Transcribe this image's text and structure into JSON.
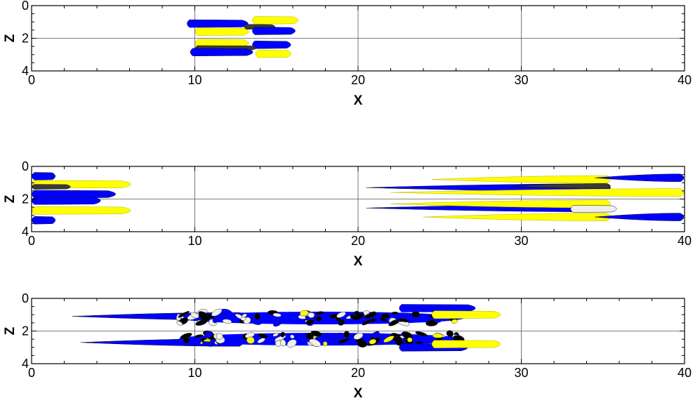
{
  "chart_data": [
    {
      "type": "contour",
      "panel": "top",
      "xlabel": "X",
      "ylabel": "Z",
      "xlim": [
        0,
        40
      ],
      "ylim": [
        4,
        0
      ],
      "xticks": [
        "0",
        "10",
        "20",
        "30",
        "40"
      ],
      "yticks": [
        "0",
        "2",
        "4"
      ],
      "grid": true,
      "structures": [
        {
          "color": "blue",
          "x": [
            9.5,
            13.5
          ],
          "z": 1.1
        },
        {
          "color": "yellow",
          "x": [
            13.5,
            16.5
          ],
          "z": 0.9
        },
        {
          "color": "dark",
          "x": [
            13.0,
            15.0
          ],
          "z": 1.3
        },
        {
          "color": "blue",
          "x": [
            13.5,
            16.3
          ],
          "z": 1.55
        },
        {
          "color": "yellow",
          "x": [
            10.0,
            13.5
          ],
          "z": 1.6
        },
        {
          "color": "yellow",
          "x": [
            10.0,
            13.5
          ],
          "z": 2.3
        },
        {
          "color": "blue",
          "x": [
            13.5,
            16.0
          ],
          "z": 2.4
        },
        {
          "color": "dark",
          "x": [
            10.0,
            14.0
          ],
          "z": 2.6
        },
        {
          "color": "blue",
          "x": [
            9.7,
            13.8
          ],
          "z": 2.85
        },
        {
          "color": "yellow",
          "x": [
            13.7,
            16.0
          ],
          "z": 2.95
        }
      ]
    },
    {
      "type": "contour",
      "panel": "middle",
      "xlabel": "X",
      "ylabel": "Z",
      "xlim": [
        0,
        40
      ],
      "ylim": [
        4,
        0
      ],
      "xticks": [
        "0",
        "10",
        "20",
        "30",
        "40"
      ],
      "yticks": [
        "0",
        "2",
        "4"
      ],
      "grid": true,
      "structures": [
        {
          "color": "blue",
          "x": [
            0,
            1.5
          ],
          "z": 0.6
        },
        {
          "color": "yellow",
          "x": [
            0,
            6.5
          ],
          "z": 1.1
        },
        {
          "color": "dark",
          "x": [
            0,
            2.5
          ],
          "z": 1.25
        },
        {
          "color": "blue",
          "x": [
            0,
            5.5
          ],
          "z": 1.7
        },
        {
          "color": "blue",
          "x": [
            0,
            4.5
          ],
          "z": 2.1
        },
        {
          "color": "yellow",
          "x": [
            0,
            6.5
          ],
          "z": 2.7
        },
        {
          "color": "blue",
          "x": [
            0,
            1.5
          ],
          "z": 3.3
        },
        {
          "color": "blue",
          "x": [
            20.5,
            35.5
          ],
          "z": 1.3
        },
        {
          "color": "yellow",
          "x": [
            24.5,
            35.5
          ],
          "z": 0.8
        },
        {
          "color": "yellow",
          "x": [
            22.0,
            40
          ],
          "z": 1.6
        },
        {
          "color": "blue",
          "x": [
            34.5,
            40
          ],
          "z": 0.7
        },
        {
          "color": "dark",
          "x": [
            29.5,
            35.5
          ],
          "z": 1.2
        },
        {
          "color": "blue",
          "x": [
            20.5,
            35.5
          ],
          "z": 2.55
        },
        {
          "color": "yellow",
          "x": [
            22.0,
            35.5
          ],
          "z": 2.3
        },
        {
          "color": "yellow",
          "x": [
            24.0,
            35.5
          ],
          "z": 3.1
        },
        {
          "color": "blue",
          "x": [
            34.5,
            40
          ],
          "z": 3.1
        },
        {
          "color": "white",
          "x": [
            33.0,
            36.0
          ],
          "z": 2.6
        }
      ]
    },
    {
      "type": "contour",
      "panel": "bottom",
      "xlabel": "X",
      "ylabel": "Z",
      "xlim": [
        0,
        40
      ],
      "ylim": [
        4,
        0
      ],
      "xticks": [
        "0",
        "10",
        "20",
        "30",
        "40"
      ],
      "yticks": [
        "0",
        "2",
        "4"
      ],
      "grid": true,
      "structures": [
        {
          "color": "blue",
          "x": [
            2.5,
            13.0
          ],
          "z": 1.1
        },
        {
          "color": "blue",
          "x": [
            3.0,
            13.0
          ],
          "z": 2.7
        },
        {
          "color": "mixed",
          "x": [
            9.0,
            26.5
          ],
          "z": 1.2
        },
        {
          "color": "mixed",
          "x": [
            9.0,
            26.5
          ],
          "z": 2.5
        },
        {
          "color": "blue",
          "x": [
            22.5,
            27.5
          ],
          "z": 0.6
        },
        {
          "color": "yellow",
          "x": [
            24.5,
            29.0
          ],
          "z": 1.0
        },
        {
          "color": "blue",
          "x": [
            22.5,
            27.0
          ],
          "z": 3.0
        },
        {
          "color": "yellow",
          "x": [
            24.5,
            29.0
          ],
          "z": 2.8
        }
      ]
    }
  ],
  "colors": {
    "blue": "#0000ff",
    "yellow": "#ffff00",
    "dark": "#3a3a3a",
    "black": "#000000",
    "white": "#efefef",
    "frame": "#000000",
    "grid": "#555555"
  }
}
